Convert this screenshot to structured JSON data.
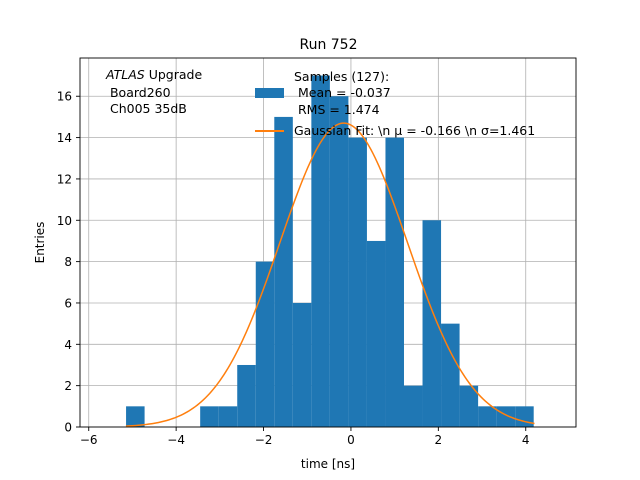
{
  "chart_data": {
    "type": "bar",
    "title": "Run 752",
    "xlabel": "time [ns]",
    "ylabel": "Entries",
    "xlim": [
      -6.2,
      5.15
    ],
    "ylim": [
      0,
      17.85
    ],
    "grid": true,
    "legend_placement": "top-center",
    "xticks": [
      -6,
      -4,
      -2,
      0,
      2,
      4
    ],
    "yticks": [
      0,
      2,
      4,
      6,
      8,
      10,
      12,
      14,
      16
    ],
    "bin_width": 0.424,
    "bins": [
      {
        "x0": -5.146,
        "count": 1
      },
      {
        "x0": -4.722,
        "count": 0
      },
      {
        "x0": -4.298,
        "count": 0
      },
      {
        "x0": -3.874,
        "count": 0
      },
      {
        "x0": -3.45,
        "count": 1
      },
      {
        "x0": -3.026,
        "count": 1
      },
      {
        "x0": -2.602,
        "count": 3
      },
      {
        "x0": -2.178,
        "count": 8
      },
      {
        "x0": -1.754,
        "count": 15
      },
      {
        "x0": -1.33,
        "count": 6
      },
      {
        "x0": -0.906,
        "count": 17
      },
      {
        "x0": -0.482,
        "count": 16
      },
      {
        "x0": -0.058,
        "count": 14
      },
      {
        "x0": 0.366,
        "count": 9
      },
      {
        "x0": 0.79,
        "count": 14
      },
      {
        "x0": 1.214,
        "count": 2
      },
      {
        "x0": 1.638,
        "count": 10
      },
      {
        "x0": 2.062,
        "count": 5
      },
      {
        "x0": 2.486,
        "count": 2
      },
      {
        "x0": 2.91,
        "count": 1
      },
      {
        "x0": 3.334,
        "count": 1
      },
      {
        "x0": 3.758,
        "count": 1
      }
    ],
    "fit": {
      "type": "gaussian",
      "mu": -0.166,
      "sigma": 1.461,
      "amplitude": 14.7,
      "x_range": [
        -5.15,
        4.2
      ]
    },
    "bar_color": "#1f77b4",
    "fit_color": "#ff7f0e",
    "annotation": {
      "italic": "ATLAS",
      "rest": " Upgrade",
      "line2": " Board260",
      "line3": " Ch005 35dB"
    },
    "legend": {
      "samples": [
        "Samples (127):",
        " Mean = -0.037",
        " RMS = 1.474"
      ],
      "fit": "Gaussian Fit: \\n μ = -0.166 \\n σ=1.461"
    }
  }
}
